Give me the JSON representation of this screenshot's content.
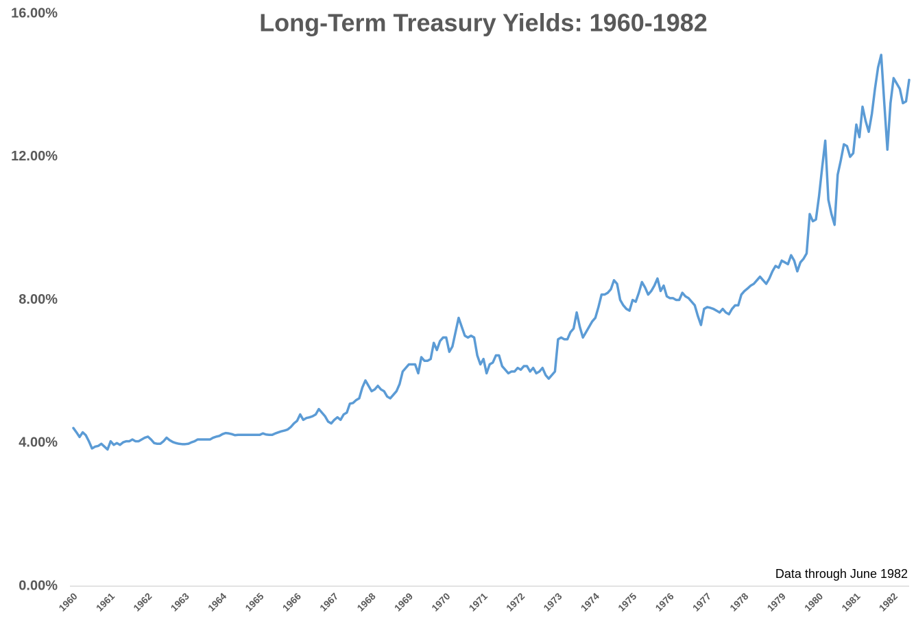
{
  "chart_data": {
    "type": "line",
    "title": "Long-Term Treasury Yields: 1960-1982",
    "annotation": "Data through June 1982",
    "color": "#5b9bd5",
    "categories": [
      "1960",
      null,
      null,
      null,
      null,
      null,
      null,
      null,
      null,
      null,
      null,
      null,
      "1961",
      null,
      null,
      null,
      null,
      null,
      null,
      null,
      null,
      null,
      null,
      null,
      "1962",
      null,
      null,
      null,
      null,
      null,
      null,
      null,
      null,
      null,
      null,
      null,
      "1963",
      null,
      null,
      null,
      null,
      null,
      null,
      null,
      null,
      null,
      null,
      null,
      "1964",
      null,
      null,
      null,
      null,
      null,
      null,
      null,
      null,
      null,
      null,
      null,
      "1965",
      null,
      null,
      null,
      null,
      null,
      null,
      null,
      null,
      null,
      null,
      null,
      "1966",
      null,
      null,
      null,
      null,
      null,
      null,
      null,
      null,
      null,
      null,
      null,
      "1967",
      null,
      null,
      null,
      null,
      null,
      null,
      null,
      null,
      null,
      null,
      null,
      "1968",
      null,
      null,
      null,
      null,
      null,
      null,
      null,
      null,
      null,
      null,
      null,
      "1969",
      null,
      null,
      null,
      null,
      null,
      null,
      null,
      null,
      null,
      null,
      null,
      "1970",
      null,
      null,
      null,
      null,
      null,
      null,
      null,
      null,
      null,
      null,
      null,
      "1971",
      null,
      null,
      null,
      null,
      null,
      null,
      null,
      null,
      null,
      null,
      null,
      "1972",
      null,
      null,
      null,
      null,
      null,
      null,
      null,
      null,
      null,
      null,
      null,
      "1973",
      null,
      null,
      null,
      null,
      null,
      null,
      null,
      null,
      null,
      null,
      null,
      "1974",
      null,
      null,
      null,
      null,
      null,
      null,
      null,
      null,
      null,
      null,
      null,
      "1975",
      null,
      null,
      null,
      null,
      null,
      null,
      null,
      null,
      null,
      null,
      null,
      "1976",
      null,
      null,
      null,
      null,
      null,
      null,
      null,
      null,
      null,
      null,
      null,
      "1977",
      null,
      null,
      null,
      null,
      null,
      null,
      null,
      null,
      null,
      null,
      null,
      "1978",
      null,
      null,
      null,
      null,
      null,
      null,
      null,
      null,
      null,
      null,
      null,
      "1979",
      null,
      null,
      null,
      null,
      null,
      null,
      null,
      null,
      null,
      null,
      null,
      "1980",
      null,
      null,
      null,
      null,
      null,
      null,
      null,
      null,
      null,
      null,
      null,
      "1981",
      null,
      null,
      null,
      null,
      null,
      null,
      null,
      null,
      null,
      null,
      null,
      "1982",
      null,
      null,
      null,
      null,
      null
    ],
    "values": [
      4.42,
      4.3,
      4.17,
      4.3,
      4.22,
      4.05,
      3.85,
      3.9,
      3.92,
      3.98,
      3.9,
      3.82,
      4.05,
      3.95,
      4.0,
      3.95,
      4.02,
      4.05,
      4.05,
      4.1,
      4.05,
      4.05,
      4.1,
      4.15,
      4.18,
      4.1,
      4.0,
      3.98,
      3.98,
      4.05,
      4.15,
      4.08,
      4.03,
      4.0,
      3.98,
      3.97,
      3.97,
      3.98,
      4.02,
      4.05,
      4.1,
      4.1,
      4.1,
      4.1,
      4.1,
      4.15,
      4.18,
      4.2,
      4.25,
      4.28,
      4.27,
      4.25,
      4.22,
      4.23,
      4.23,
      4.23,
      4.23,
      4.23,
      4.23,
      4.23,
      4.23,
      4.27,
      4.24,
      4.23,
      4.23,
      4.27,
      4.3,
      4.33,
      4.35,
      4.38,
      4.45,
      4.55,
      4.62,
      4.8,
      4.65,
      4.7,
      4.72,
      4.75,
      4.8,
      4.95,
      4.85,
      4.75,
      4.6,
      4.55,
      4.65,
      4.72,
      4.65,
      4.8,
      4.85,
      5.1,
      5.12,
      5.2,
      5.25,
      5.55,
      5.75,
      5.6,
      5.45,
      5.5,
      5.6,
      5.5,
      5.45,
      5.3,
      5.25,
      5.35,
      5.45,
      5.65,
      6.0,
      6.1,
      6.2,
      6.2,
      6.2,
      5.95,
      6.4,
      6.3,
      6.3,
      6.35,
      6.8,
      6.6,
      6.85,
      6.95,
      6.95,
      6.55,
      6.7,
      7.1,
      7.5,
      7.25,
      7.0,
      6.95,
      7.0,
      6.95,
      6.45,
      6.2,
      6.35,
      5.95,
      6.2,
      6.25,
      6.45,
      6.45,
      6.15,
      6.05,
      5.95,
      6.0,
      6.0,
      6.1,
      6.05,
      6.15,
      6.15,
      6.0,
      6.1,
      5.95,
      6.0,
      6.1,
      5.9,
      5.8,
      5.9,
      6.0,
      6.9,
      6.95,
      6.9,
      6.9,
      7.1,
      7.2,
      7.65,
      7.25,
      6.95,
      7.1,
      7.25,
      7.4,
      7.5,
      7.8,
      8.15,
      8.15,
      8.2,
      8.3,
      8.55,
      8.45,
      8.0,
      7.85,
      7.75,
      7.7,
      8.0,
      7.95,
      8.2,
      8.5,
      8.35,
      8.15,
      8.25,
      8.4,
      8.6,
      8.25,
      8.4,
      8.1,
      8.05,
      8.05,
      8.0,
      8.0,
      8.2,
      8.1,
      8.05,
      7.95,
      7.85,
      7.55,
      7.3,
      7.75,
      7.8,
      7.78,
      7.75,
      7.7,
      7.65,
      7.75,
      7.65,
      7.6,
      7.75,
      7.85,
      7.85,
      8.15,
      8.25,
      8.32,
      8.4,
      8.45,
      8.55,
      8.65,
      8.55,
      8.45,
      8.6,
      8.8,
      8.95,
      8.9,
      9.1,
      9.05,
      9.0,
      9.25,
      9.1,
      8.8,
      9.05,
      9.15,
      9.3,
      10.4,
      10.2,
      10.25,
      10.9,
      11.7,
      12.45,
      10.8,
      10.4,
      10.1,
      11.5,
      11.9,
      12.35,
      12.3,
      12.0,
      12.1,
      12.9,
      12.55,
      13.4,
      13.0,
      12.7,
      13.2,
      13.9,
      14.5,
      14.85,
      13.5,
      12.2,
      13.5,
      14.2,
      14.05,
      13.9,
      13.5,
      13.55,
      14.15
    ],
    "ylim": [
      0,
      16
    ],
    "yticks": [
      {
        "value": 0,
        "label": "0.00%"
      },
      {
        "value": 4,
        "label": "4.00%"
      },
      {
        "value": 8,
        "label": "8.00%"
      },
      {
        "value": 12,
        "label": "12.00%"
      },
      {
        "value": 16,
        "label": "16.00%"
      }
    ],
    "grid": false
  }
}
